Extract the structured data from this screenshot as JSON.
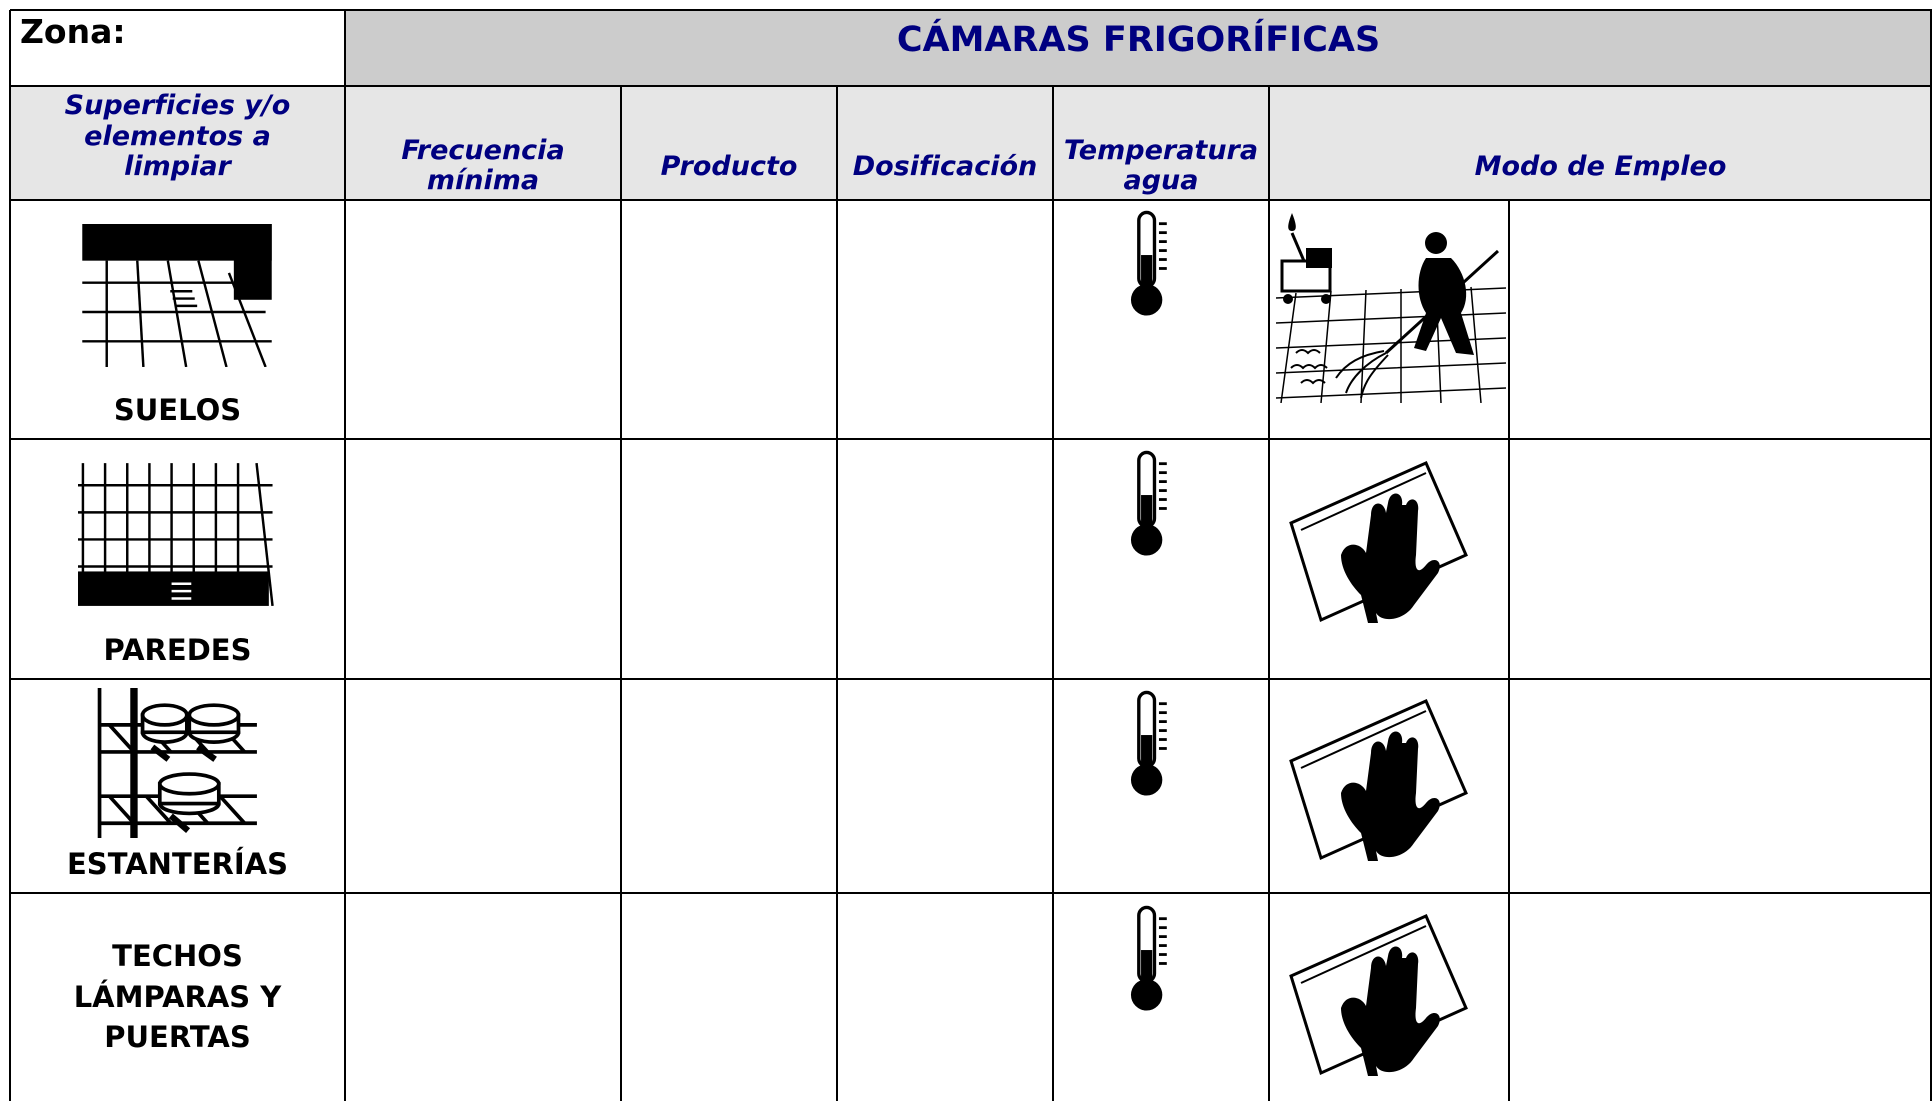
{
  "header": {
    "zone_label": "Zona:",
    "title": "CÁMARAS FRIGORÍFICAS"
  },
  "columns": [
    "Superficies y/o elementos a limpiar",
    "Frecuencia mínima",
    "Producto",
    "Dosificación",
    "Temperatura agua",
    "Modo de Empleo"
  ],
  "rows": [
    {
      "surface": "SUELOS"
    },
    {
      "surface": "PAREDES"
    },
    {
      "surface": "ESTANTERÍAS"
    },
    {
      "surface": "TECHOS LÁMPARAS Y PUERTAS"
    }
  ]
}
